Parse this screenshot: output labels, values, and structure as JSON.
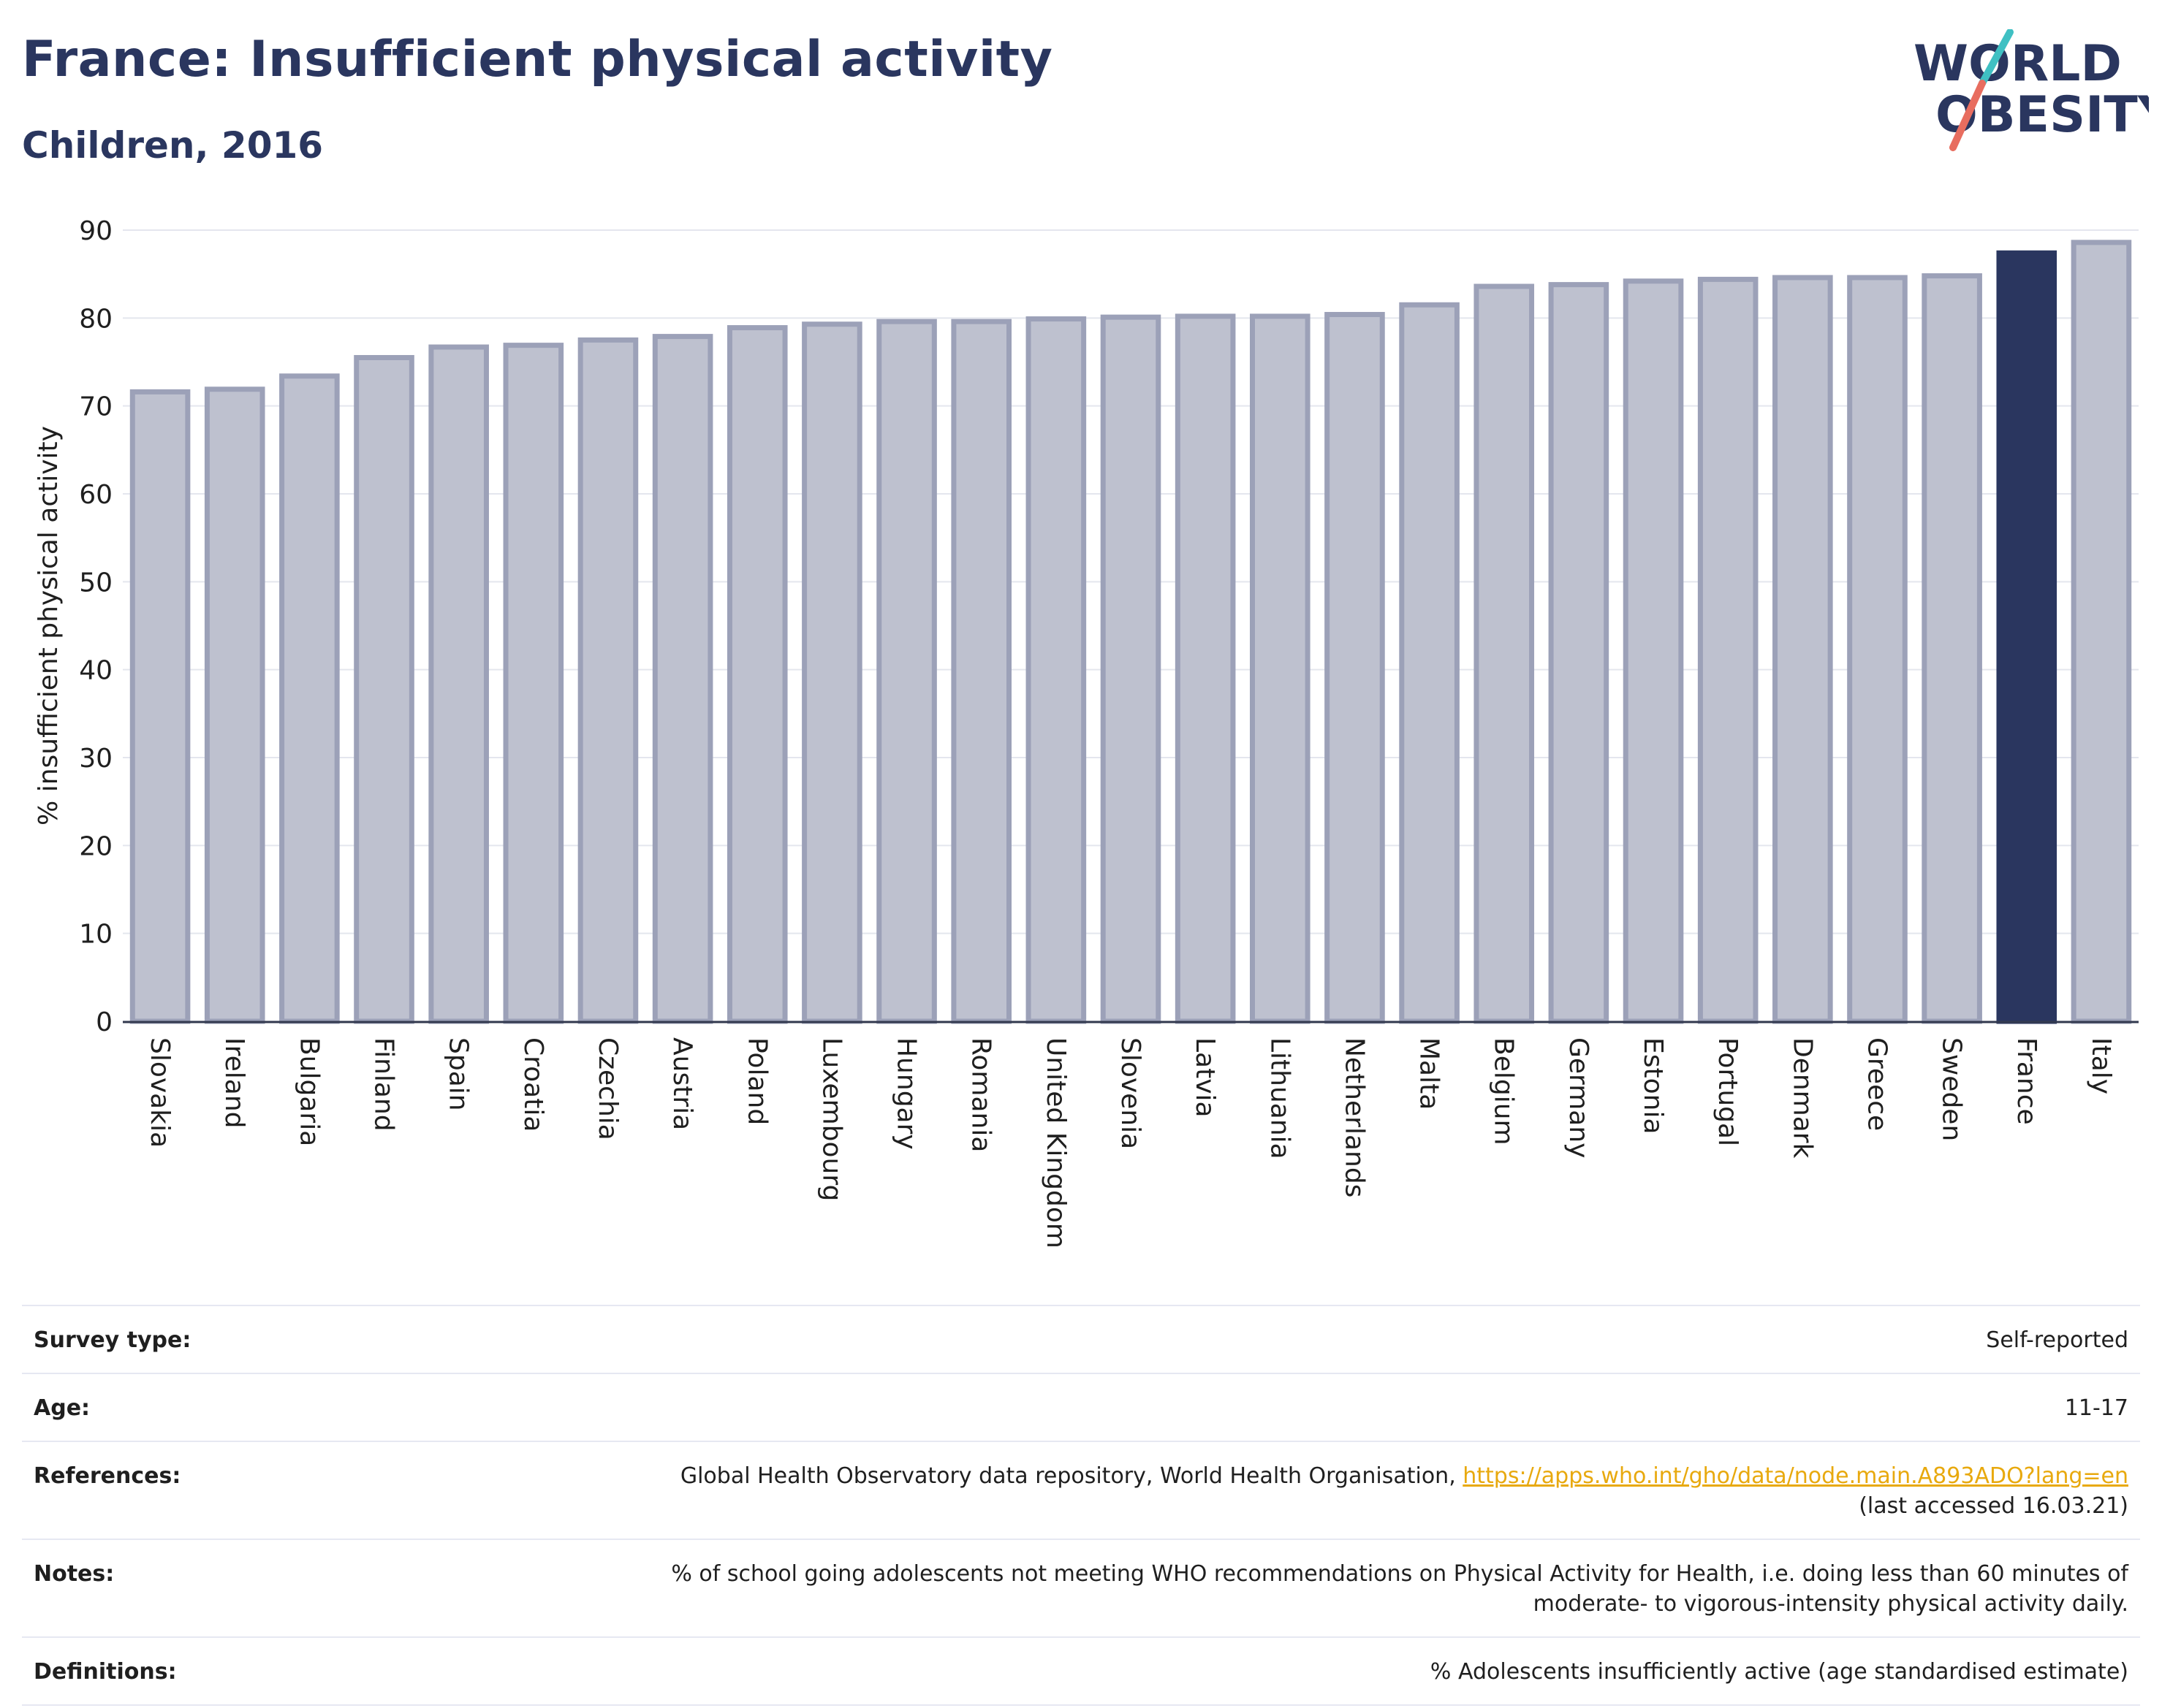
{
  "header": {
    "title": "France: Insufficient physical activity",
    "subtitle": "Children, 2016"
  },
  "logo": {
    "line1": "WORLD",
    "line2": "OBESITY"
  },
  "colors": {
    "highlight": "#2a365f",
    "bar_fill": "#bec1cf",
    "bar_stroke": "#9ca1b8",
    "accent_teal": "#3fc0c3",
    "accent_red": "#e86d5f",
    "link": "#e8a90e"
  },
  "chart_data": {
    "type": "bar",
    "ylabel": "% insufficient physical activity",
    "ylim": [
      0,
      90
    ],
    "yticks": [
      0,
      10,
      20,
      30,
      40,
      50,
      60,
      70,
      80,
      90
    ],
    "grid": true,
    "highlight": "France",
    "categories": [
      "Slovakia",
      "Ireland",
      "Bulgaria",
      "Finland",
      "Spain",
      "Croatia",
      "Czechia",
      "Austria",
      "Poland",
      "Luxembourg",
      "Hungary",
      "Romania",
      "United Kingdom",
      "Slovenia",
      "Latvia",
      "Lithuania",
      "Netherlands",
      "Malta",
      "Belgium",
      "Germany",
      "Estonia",
      "Portugal",
      "Denmark",
      "Greece",
      "Sweden",
      "France",
      "Italy"
    ],
    "values": [
      71.6,
      71.9,
      73.4,
      75.5,
      76.7,
      76.9,
      77.5,
      77.9,
      78.9,
      79.3,
      79.6,
      79.6,
      79.9,
      80.1,
      80.2,
      80.2,
      80.4,
      81.5,
      83.6,
      83.8,
      84.2,
      84.4,
      84.6,
      84.6,
      84.8,
      87.4,
      88.6
    ]
  },
  "meta": [
    {
      "key": "Survey type:",
      "value": "Self-reported"
    },
    {
      "key": "Age:",
      "value": "11-17"
    },
    {
      "key": "References:",
      "value": "Global Health Observatory data repository, World Health Organisation, ",
      "link": "https://apps.who.int/gho/data/node.main.A893ADO?lang=en",
      "value2": "(last accessed 16.03.21)"
    },
    {
      "key": "Notes:",
      "value": "% of school going adolescents not meeting WHO recommendations on Physical Activity for Health, i.e. doing less than 60 minutes of",
      "value2": "moderate- to vigorous-intensity physical activity daily."
    },
    {
      "key": "Definitions:",
      "value": "% Adolescents insufficiently active (age standardised estimate)"
    }
  ]
}
